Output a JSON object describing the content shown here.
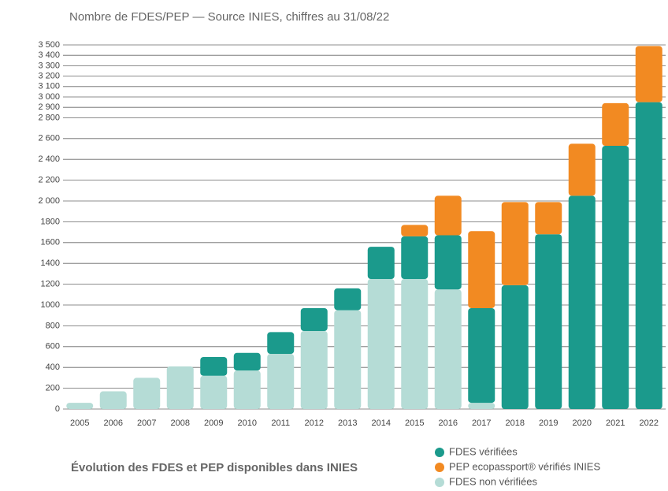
{
  "chart_data": {
    "type": "stacked-bar",
    "title": "Nombre de FDES/PEP — Source INIES, chiffres au 31/08/22",
    "caption": "Évolution des FDES et PEP disponibles dans INIES",
    "categories": [
      "2005",
      "2006",
      "2007",
      "2008",
      "2009",
      "2010",
      "2011",
      "2012",
      "2013",
      "2014",
      "2015",
      "2016",
      "2017",
      "2018",
      "2019",
      "2020",
      "2021",
      "2022"
    ],
    "series": [
      {
        "name": "FDES vérifiées",
        "color": "#1b9a8c",
        "values": [
          0,
          0,
          0,
          0,
          180,
          170,
          210,
          220,
          210,
          310,
          410,
          520,
          910,
          1190,
          1680,
          2050,
          2530,
          2950
        ]
      },
      {
        "name": "PEP ecopassport® vérifiés INIES",
        "color": "#f28a22",
        "values": [
          0,
          0,
          0,
          0,
          0,
          0,
          0,
          0,
          0,
          0,
          110,
          380,
          740,
          800,
          310,
          500,
          410,
          540
        ]
      },
      {
        "name": "FDES non vérifiées",
        "color": "#b5dcd6",
        "values": [
          60,
          170,
          300,
          410,
          320,
          370,
          530,
          750,
          950,
          1250,
          1250,
          1150,
          60,
          0,
          0,
          0,
          0,
          0
        ]
      }
    ],
    "ylim": [
      0,
      3500
    ],
    "yticks": [
      0,
      200,
      400,
      600,
      800,
      1000,
      1200,
      1400,
      1600,
      1800,
      {
        "value": 2000,
        "label": "2 000"
      },
      {
        "value": 2200,
        "label": "2 200"
      },
      {
        "value": 2400,
        "label": "2 400"
      },
      {
        "value": 2600,
        "label": "2 600"
      },
      {
        "value": 2800,
        "label": "2 800"
      },
      {
        "value": 2900,
        "label": "2 900"
      },
      {
        "value": 3000,
        "label": "3 000"
      },
      {
        "value": 3100,
        "label": "3 100"
      },
      {
        "value": 3200,
        "label": "3 200"
      },
      {
        "value": 3300,
        "label": "3 300"
      },
      {
        "value": 3400,
        "label": "3 400"
      },
      {
        "value": 3500,
        "label": "3 500"
      }
    ],
    "grid": true
  }
}
